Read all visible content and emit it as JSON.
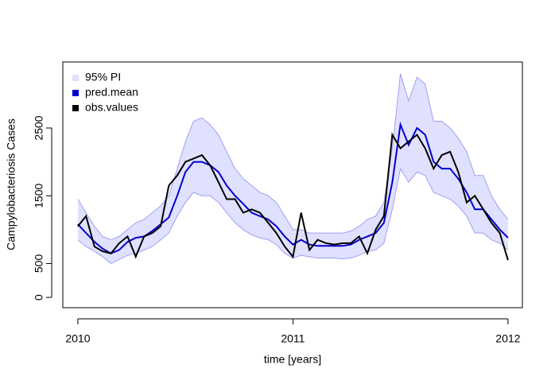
{
  "chart_data": {
    "type": "line",
    "x_label": "time [years]",
    "y_label": "Campylobacteriosis Cases",
    "x": [
      2010.0,
      2010.038,
      2010.077,
      2010.115,
      2010.154,
      2010.192,
      2010.231,
      2010.269,
      2010.308,
      2010.346,
      2010.385,
      2010.423,
      2010.462,
      2010.5,
      2010.538,
      2010.577,
      2010.615,
      2010.654,
      2010.692,
      2010.731,
      2010.769,
      2010.808,
      2010.846,
      2010.885,
      2010.923,
      2010.962,
      2011.0,
      2011.038,
      2011.077,
      2011.115,
      2011.154,
      2011.192,
      2011.231,
      2011.269,
      2011.308,
      2011.346,
      2011.385,
      2011.423,
      2011.462,
      2011.5,
      2011.538,
      2011.577,
      2011.615,
      2011.654,
      2011.692,
      2011.731,
      2011.769,
      2011.808,
      2011.846,
      2011.885,
      2011.923,
      2011.962,
      2012.0
    ],
    "series": [
      {
        "name": "95% PI",
        "color": "#e0e0ff",
        "band": true,
        "lower": [
          850,
          750,
          680,
          600,
          500,
          560,
          620,
          650,
          700,
          750,
          850,
          950,
          1200,
          1400,
          1550,
          1500,
          1500,
          1400,
          1250,
          1100,
          1000,
          920,
          880,
          850,
          780,
          650,
          580,
          620,
          600,
          580,
          580,
          580,
          570,
          580,
          620,
          680,
          700,
          800,
          1300,
          1900,
          1700,
          1850,
          1800,
          1550,
          1500,
          1450,
          1350,
          1200,
          950,
          950,
          850,
          800,
          700
        ],
        "upper": [
          1450,
          1250,
          1050,
          900,
          850,
          900,
          1000,
          1100,
          1150,
          1250,
          1350,
          1500,
          1900,
          2300,
          2600,
          2650,
          2550,
          2400,
          2150,
          1900,
          1750,
          1650,
          1550,
          1500,
          1400,
          1200,
          1000,
          1000,
          950,
          950,
          950,
          950,
          950,
          980,
          1050,
          1150,
          1200,
          1400,
          2200,
          3300,
          2900,
          3250,
          3150,
          2600,
          2600,
          2500,
          2350,
          2150,
          1800,
          1800,
          1500,
          1300,
          1150
        ]
      },
      {
        "name": "pred.mean",
        "color": "#0000cd",
        "values": [
          1080,
          950,
          820,
          720,
          650,
          700,
          820,
          880,
          900,
          980,
          1080,
          1180,
          1500,
          1850,
          2000,
          2000,
          1950,
          1850,
          1650,
          1500,
          1380,
          1250,
          1200,
          1150,
          1050,
          900,
          780,
          850,
          780,
          760,
          760,
          760,
          760,
          780,
          850,
          900,
          950,
          1100,
          1700,
          2550,
          2250,
          2500,
          2400,
          2000,
          1900,
          1900,
          1750,
          1550,
          1300,
          1300,
          1150,
          1000,
          880
        ]
      },
      {
        "name": "obs.values",
        "color": "#000000",
        "values": [
          1050,
          1200,
          750,
          680,
          650,
          800,
          900,
          600,
          900,
          950,
          1050,
          1650,
          1800,
          2000,
          2050,
          2100,
          1950,
          1700,
          1450,
          1450,
          1250,
          1300,
          1250,
          1100,
          950,
          750,
          600,
          1250,
          700,
          850,
          800,
          780,
          800,
          800,
          900,
          650,
          1000,
          1200,
          2400,
          2200,
          2300,
          2400,
          2200,
          1900,
          2100,
          2150,
          1850,
          1400,
          1500,
          1300,
          1100,
          950,
          550
        ]
      }
    ],
    "xlim": [
      2009.93,
      2012.067
    ],
    "xticks": [
      2010,
      2011,
      2012
    ],
    "ylim": [
      -152,
      3474
    ],
    "yticks": [
      0,
      500,
      1500,
      2500
    ],
    "legend": "top-left"
  }
}
